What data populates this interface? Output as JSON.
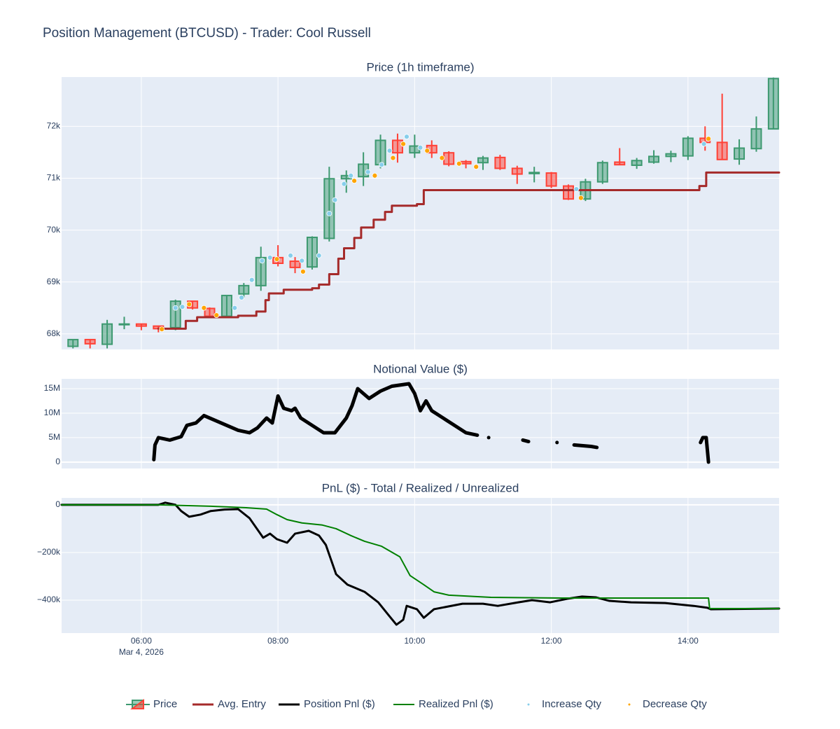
{
  "title": "Position Management (BTCUSD) - Trader: Cool Russell",
  "chart_data": [
    {
      "type": "candlestick",
      "title": "Price (1h timeframe)",
      "name": "Price",
      "increasing_color": "#3d9970",
      "decreasing_color": "#ff4136",
      "x": [
        "2026-03-04 05:00",
        "2026-03-04 05:15",
        "2026-03-04 05:30",
        "2026-03-04 05:45",
        "2026-03-04 06:00",
        "2026-03-04 06:15",
        "2026-03-04 06:30",
        "2026-03-04 06:45",
        "2026-03-04 07:00",
        "2026-03-04 07:15",
        "2026-03-04 07:30",
        "2026-03-04 07:45",
        "2026-03-04 08:00",
        "2026-03-04 08:15",
        "2026-03-04 08:30",
        "2026-03-04 08:45",
        "2026-03-04 09:00",
        "2026-03-04 09:15",
        "2026-03-04 09:30",
        "2026-03-04 09:45",
        "2026-03-04 10:00",
        "2026-03-04 10:15",
        "2026-03-04 10:30",
        "2026-03-04 10:45",
        "2026-03-04 11:00",
        "2026-03-04 11:15",
        "2026-03-04 11:30",
        "2026-03-04 11:45",
        "2026-03-04 12:00",
        "2026-03-04 12:15",
        "2026-03-04 12:30",
        "2026-03-04 12:45",
        "2026-03-04 13:00",
        "2026-03-04 13:15",
        "2026-03-04 13:30",
        "2026-03-04 13:45",
        "2026-03-04 14:00",
        "2026-03-04 14:15",
        "2026-03-04 14:30",
        "2026-03-04 14:45",
        "2026-03-04 15:00",
        "2026-03-04 15:15"
      ],
      "open": [
        67760,
        67890,
        67800,
        68180,
        68190,
        68150,
        68120,
        68630,
        68490,
        68340,
        68770,
        68930,
        69470,
        69400,
        69290,
        69840,
        70990,
        71030,
        71260,
        71730,
        71490,
        71630,
        71490,
        71320,
        71300,
        71400,
        71190,
        71090,
        71100,
        70850,
        70600,
        70930,
        71310,
        71250,
        71310,
        71420,
        71430,
        71770,
        71690,
        71370,
        71570,
        71950
      ],
      "high": [
        67900,
        67900,
        68270,
        68330,
        68200,
        68160,
        68660,
        68640,
        68510,
        68750,
        68980,
        69680,
        69710,
        69480,
        69880,
        71220,
        71150,
        71500,
        71840,
        71860,
        71840,
        71730,
        71520,
        71350,
        71430,
        71450,
        71240,
        71220,
        71120,
        70880,
        70990,
        71340,
        71580,
        71390,
        71540,
        71530,
        71810,
        72000,
        72630,
        71750,
        72190,
        72940
      ],
      "low": [
        67720,
        67720,
        67720,
        68090,
        68070,
        68030,
        68070,
        68470,
        68320,
        68330,
        68700,
        68830,
        69300,
        69170,
        69240,
        69780,
        70720,
        70850,
        71190,
        71300,
        71390,
        71390,
        71230,
        71190,
        71160,
        71160,
        70890,
        70920,
        70810,
        70580,
        70560,
        70890,
        71250,
        71180,
        71280,
        71310,
        71350,
        71530,
        71350,
        71260,
        71510,
        71940
      ],
      "close": [
        67890,
        67810,
        68190,
        68190,
        68150,
        68100,
        68630,
        68500,
        68340,
        68740,
        68930,
        69470,
        69360,
        69280,
        69860,
        70990,
        71050,
        71270,
        71730,
        71490,
        71620,
        71490,
        71270,
        71280,
        71390,
        71190,
        71080,
        71110,
        70850,
        70600,
        70930,
        71300,
        71260,
        71340,
        71420,
        71470,
        71770,
        71690,
        71360,
        71580,
        71950,
        72920
      ],
      "series": [
        {
          "name": "Avg. Entry",
          "color": "#a52a2a",
          "mode": "lines",
          "line_shape": "hv",
          "x": [
            "2026-03-04 06:15",
            "2026-03-04 06:39",
            "2026-03-04 06:49",
            "2026-03-04 07:25",
            "2026-03-04 07:41",
            "2026-03-04 07:49",
            "2026-03-04 07:52",
            "2026-03-04 08:05",
            "2026-03-04 08:30",
            "2026-03-04 08:36",
            "2026-03-04 08:45",
            "2026-03-04 08:53",
            "2026-03-04 08:58",
            "2026-03-04 09:07",
            "2026-03-04 09:13",
            "2026-03-04 09:24",
            "2026-03-04 09:34",
            "2026-03-04 09:40",
            "2026-03-04 10:02",
            "2026-03-04 10:08",
            "2026-03-04 14:02",
            "2026-03-04 14:10",
            "2026-03-04 14:16",
            "2026-03-04 15:20"
          ],
          "values": [
            68100,
            68250,
            68320,
            68350,
            68430,
            68650,
            68780,
            68850,
            68880,
            68950,
            69150,
            69450,
            69650,
            69850,
            70050,
            70200,
            70350,
            70470,
            70500,
            70770,
            70770,
            70850,
            71110,
            71110
          ]
        },
        {
          "name": "Increase Qty",
          "color": "#87ceeb",
          "mode": "markers",
          "x": [
            "2026-03-04 06:30",
            "2026-03-04 06:36",
            "2026-03-04 07:22",
            "2026-03-04 07:28",
            "2026-03-04 07:37",
            "2026-03-04 07:46",
            "2026-03-04 07:53",
            "2026-03-04 08:11",
            "2026-03-04 08:21",
            "2026-03-04 08:36",
            "2026-03-04 08:45",
            "2026-03-04 08:50",
            "2026-03-04 08:58",
            "2026-03-04 09:04",
            "2026-03-04 09:19",
            "2026-03-04 09:31",
            "2026-03-04 09:38",
            "2026-03-04 09:53",
            "2026-03-04 10:05",
            "2026-03-04 12:22",
            "2026-03-04 14:14"
          ],
          "values": [
            68500,
            68520,
            68500,
            68700,
            69040,
            69410,
            69470,
            69510,
            69410,
            69510,
            70320,
            70580,
            70890,
            71050,
            71120,
            71260,
            71530,
            71800,
            71590,
            70790,
            71660
          ]
        },
        {
          "name": "Decrease Qty",
          "color": "#ffa500",
          "mode": "markers",
          "x": [
            "2026-03-04 06:18",
            "2026-03-04 06:42",
            "2026-03-04 06:55",
            "2026-03-04 07:06",
            "2026-03-04 07:59",
            "2026-03-04 08:22",
            "2026-03-04 09:07",
            "2026-03-04 09:25",
            "2026-03-04 09:41",
            "2026-03-04 09:50",
            "2026-03-04 10:11",
            "2026-03-04 10:24",
            "2026-03-04 10:39",
            "2026-03-04 10:54",
            "2026-03-04 12:26",
            "2026-03-04 14:18"
          ],
          "values": [
            68090,
            68570,
            68500,
            68360,
            69440,
            69200,
            70950,
            71050,
            71390,
            71660,
            71530,
            71390,
            71280,
            71220,
            70620,
            71760
          ]
        }
      ],
      "xlim": [
        "2026-03-04 04:50",
        "2026-03-04 15:20"
      ],
      "xticks": [
        {
          "value": "2026-03-04 06:00",
          "label": "06:00"
        },
        {
          "value": "2026-03-04 08:00",
          "label": "08:00"
        },
        {
          "value": "2026-03-04 10:00",
          "label": "10:00"
        },
        {
          "value": "2026-03-04 12:00",
          "label": "12:00"
        },
        {
          "value": "2026-03-04 14:00",
          "label": "14:00"
        }
      ],
      "ylim": [
        67700,
        72950
      ],
      "yticks": [
        {
          "value": 68000,
          "label": "68k"
        },
        {
          "value": 69000,
          "label": "69k"
        },
        {
          "value": 70000,
          "label": "70k"
        },
        {
          "value": 71000,
          "label": "71k"
        },
        {
          "value": 72000,
          "label": "72k"
        }
      ],
      "grid": true
    },
    {
      "type": "line",
      "title": "Notional Value ($)",
      "series": [
        {
          "color": "#000000",
          "mode": "lines+markers",
          "x": [
            "2026-03-04 06:11",
            "2026-03-04 06:12",
            "2026-03-04 06:15",
            "2026-03-04 06:25",
            "2026-03-04 06:35",
            "2026-03-04 06:40",
            "2026-03-04 06:48",
            "2026-03-04 06:55",
            "2026-03-04 07:05",
            "2026-03-04 07:15",
            "2026-03-04 07:25",
            "2026-03-04 07:35",
            "2026-03-04 07:42",
            "2026-03-04 07:50",
            "2026-03-04 07:55",
            "2026-03-04 08:00",
            "2026-03-04 08:05",
            "2026-03-04 08:12",
            "2026-03-04 08:15",
            "2026-03-04 08:20",
            "2026-03-04 08:30",
            "2026-03-04 08:40",
            "2026-03-04 08:50",
            "2026-03-04 09:00",
            "2026-03-04 09:05",
            "2026-03-04 09:10",
            "2026-03-04 09:20",
            "2026-03-04 09:30",
            "2026-03-04 09:40",
            "2026-03-04 09:55",
            "2026-03-04 10:00",
            "2026-03-04 10:05",
            "2026-03-04 10:10",
            "2026-03-04 10:15",
            "2026-03-04 10:25",
            "2026-03-04 10:35",
            "2026-03-04 10:45",
            "2026-03-04 10:55",
            null,
            "2026-03-04 11:05",
            null,
            "2026-03-04 11:35",
            "2026-03-04 11:40",
            null,
            "2026-03-04 12:05",
            null,
            "2026-03-04 12:20",
            "2026-03-04 12:35",
            "2026-03-04 12:40",
            null,
            "2026-03-04 14:11",
            "2026-03-04 14:13",
            "2026-03-04 14:16",
            "2026-03-04 14:17",
            "2026-03-04 14:18"
          ],
          "values": [
            500000,
            3500000,
            5000000,
            4500000,
            5200000,
            7500000,
            8000000,
            9500000,
            8500000,
            7500000,
            6500000,
            6000000,
            7000000,
            9000000,
            8000000,
            13500000,
            11000000,
            10500000,
            11000000,
            9000000,
            7500000,
            6000000,
            6000000,
            9000000,
            11500000,
            15000000,
            13000000,
            14500000,
            15500000,
            16000000,
            14000000,
            10500000,
            12500000,
            10500000,
            9000000,
            7500000,
            6000000,
            5500000,
            null,
            5000000,
            null,
            4500000,
            4200000,
            null,
            4000000,
            null,
            3500000,
            3200000,
            3000000,
            null,
            4000000,
            5000000,
            5000000,
            2500000,
            0
          ]
        }
      ],
      "xlim": [
        "2026-03-04 04:50",
        "2026-03-04 15:20"
      ],
      "xticks": [
        {
          "value": "2026-03-04 06:00",
          "label": "06:00"
        },
        {
          "value": "2026-03-04 08:00",
          "label": "08:00"
        },
        {
          "value": "2026-03-04 10:00",
          "label": "10:00"
        },
        {
          "value": "2026-03-04 12:00",
          "label": "12:00"
        },
        {
          "value": "2026-03-04 14:00",
          "label": "14:00"
        }
      ],
      "ylim": [
        -1300000,
        17000000
      ],
      "yticks": [
        0,
        {
          "value": 5000000,
          "label": "5M"
        },
        {
          "value": 10000000,
          "label": "10M"
        },
        {
          "value": 15000000,
          "label": "15M"
        }
      ],
      "grid": true
    },
    {
      "type": "line",
      "title": "PnL ($) - Total / Realized / Unrealized",
      "series": [
        {
          "name": "Position Pnl ($)",
          "color": "#000000",
          "mode": "lines",
          "width": 3,
          "x": [
            "2026-03-04 04:50",
            "2026-03-04 06:15",
            "2026-03-04 06:21",
            "2026-03-04 06:30",
            "2026-03-04 06:35",
            "2026-03-04 06:42",
            "2026-03-04 06:52",
            "2026-03-04 07:01",
            "2026-03-04 07:13",
            "2026-03-04 07:25",
            "2026-03-04 07:35",
            "2026-03-04 07:47",
            "2026-03-04 07:53",
            "2026-03-04 07:59",
            "2026-03-04 08:08",
            "2026-03-04 08:15",
            "2026-03-04 08:27",
            "2026-03-04 08:36",
            "2026-03-04 08:42",
            "2026-03-04 08:51",
            "2026-03-04 09:01",
            "2026-03-04 09:16",
            "2026-03-04 09:28",
            "2026-03-04 09:38",
            "2026-03-04 09:44",
            "2026-03-04 09:50",
            "2026-03-04 09:53",
            "2026-03-04 10:02",
            "2026-03-04 10:08",
            "2026-03-04 10:17",
            "2026-03-04 10:30",
            "2026-03-04 10:42",
            "2026-03-04 11:00",
            "2026-03-04 11:13",
            "2026-03-04 11:31",
            "2026-03-04 11:43",
            "2026-03-04 11:59",
            "2026-03-04 12:14",
            "2026-03-04 12:27",
            "2026-03-04 12:39",
            "2026-03-04 12:51",
            "2026-03-04 13:10",
            "2026-03-04 13:40",
            "2026-03-04 14:05",
            "2026-03-04 14:17",
            "2026-03-04 14:20",
            "2026-03-04 15:20"
          ],
          "values": [
            0,
            0,
            9000,
            0,
            -26000,
            -50000,
            -41000,
            -26000,
            -20000,
            -18000,
            -56000,
            -138000,
            -121000,
            -144000,
            -159000,
            -121000,
            -109000,
            -129000,
            -168000,
            -291000,
            -335000,
            -365000,
            -409000,
            -468000,
            -503000,
            -482000,
            -424000,
            -438000,
            -474000,
            -438000,
            -426000,
            -415000,
            -415000,
            -424000,
            -409000,
            -400000,
            -409000,
            -394000,
            -385000,
            -388000,
            -403000,
            -409000,
            -412000,
            -424000,
            -432000,
            -438000,
            -435000
          ]
        },
        {
          "name": "Realized Pnl ($)",
          "color": "#008000",
          "mode": "lines",
          "width": 2,
          "x": [
            "2026-03-04 04:50",
            "2026-03-04 06:15",
            "2026-03-04 07:01",
            "2026-03-04 07:32",
            "2026-03-04 07:50",
            "2026-03-04 07:59",
            "2026-03-04 08:08",
            "2026-03-04 08:21",
            "2026-03-04 08:39",
            "2026-03-04 08:51",
            "2026-03-04 09:04",
            "2026-03-04 09:16",
            "2026-03-04 09:31",
            "2026-03-04 09:47",
            "2026-03-04 09:56",
            "2026-03-04 10:08",
            "2026-03-04 10:17",
            "2026-03-04 10:30",
            "2026-03-04 11:07",
            "2026-03-04 12:08",
            "2026-03-04 14:18",
            "2026-03-04 14:19",
            "2026-03-04 15:20"
          ],
          "values": [
            0,
            0,
            -6000,
            -12000,
            -18000,
            -41000,
            -62000,
            -76000,
            -85000,
            -100000,
            -129000,
            -153000,
            -174000,
            -218000,
            -297000,
            -335000,
            -365000,
            -379000,
            -388000,
            -391000,
            -391000,
            -435000,
            -435000
          ]
        }
      ],
      "xlim": [
        "2026-03-04 04:50",
        "2026-03-04 15:20"
      ],
      "xticks": [
        {
          "value": "2026-03-04 06:00",
          "label": "06:00"
        },
        {
          "value": "2026-03-04 08:00",
          "label": "08:00"
        },
        {
          "value": "2026-03-04 10:00",
          "label": "10:00"
        },
        {
          "value": "2026-03-04 12:00",
          "label": "12:00"
        },
        {
          "value": "2026-03-04 14:00",
          "label": "14:00"
        }
      ],
      "x_date_label": "Mar 4, 2026",
      "ylim": [
        -538000,
        29000
      ],
      "yticks": [
        0,
        {
          "value": -200000,
          "label": "−200k"
        },
        {
          "value": -400000,
          "label": "−400k"
        }
      ],
      "grid": true
    }
  ]
}
